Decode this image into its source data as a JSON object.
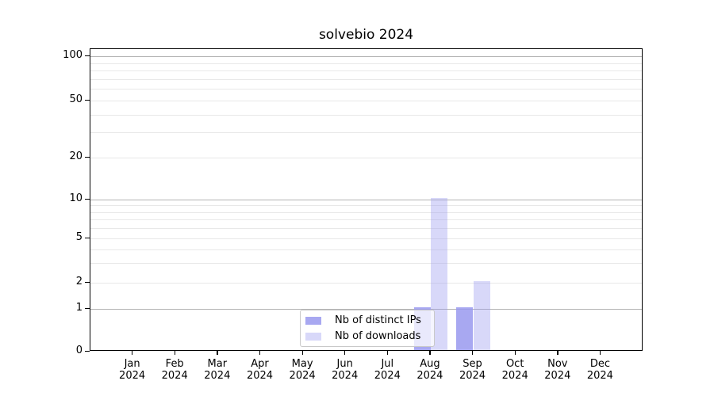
{
  "chart_data": {
    "type": "bar",
    "title": "solvebio 2024",
    "categories": [
      "Jan 2024",
      "Feb 2024",
      "Mar 2024",
      "Apr 2024",
      "May 2024",
      "Jun 2024",
      "Jul 2024",
      "Aug 2024",
      "Sep 2024",
      "Oct 2024",
      "Nov 2024",
      "Dec 2024"
    ],
    "series": [
      {
        "name": "Nb of distinct IPs",
        "color": "#9999ee",
        "alpha": 0.85,
        "values": [
          0,
          0,
          0,
          0,
          0,
          0,
          0,
          1,
          1,
          0,
          0,
          0
        ]
      },
      {
        "name": "Nb of downloads",
        "color": "#9999ee",
        "alpha": 0.38,
        "values": [
          0,
          0,
          0,
          0,
          0,
          0,
          0,
          10,
          2,
          0,
          0,
          0
        ]
      }
    ],
    "xlabel": "",
    "ylabel": "",
    "yscale": "symlog",
    "ylim": [
      0,
      100
    ],
    "yticks": [
      0,
      1,
      2,
      5,
      10,
      20,
      50,
      100
    ],
    "major_gridline_values": [
      1,
      10,
      100
    ],
    "minor_gridline_values": [
      2,
      3,
      4,
      5,
      6,
      7,
      8,
      9,
      20,
      30,
      40,
      50,
      60,
      70,
      80,
      90
    ],
    "grid": "horizontal on",
    "legend_position": "lower center inside plot",
    "colors": {
      "major_grid": "#b3b3b3",
      "minor_grid": "#e8e8e8",
      "axis": "#000000",
      "legend_border": "#c9c9c9"
    }
  }
}
